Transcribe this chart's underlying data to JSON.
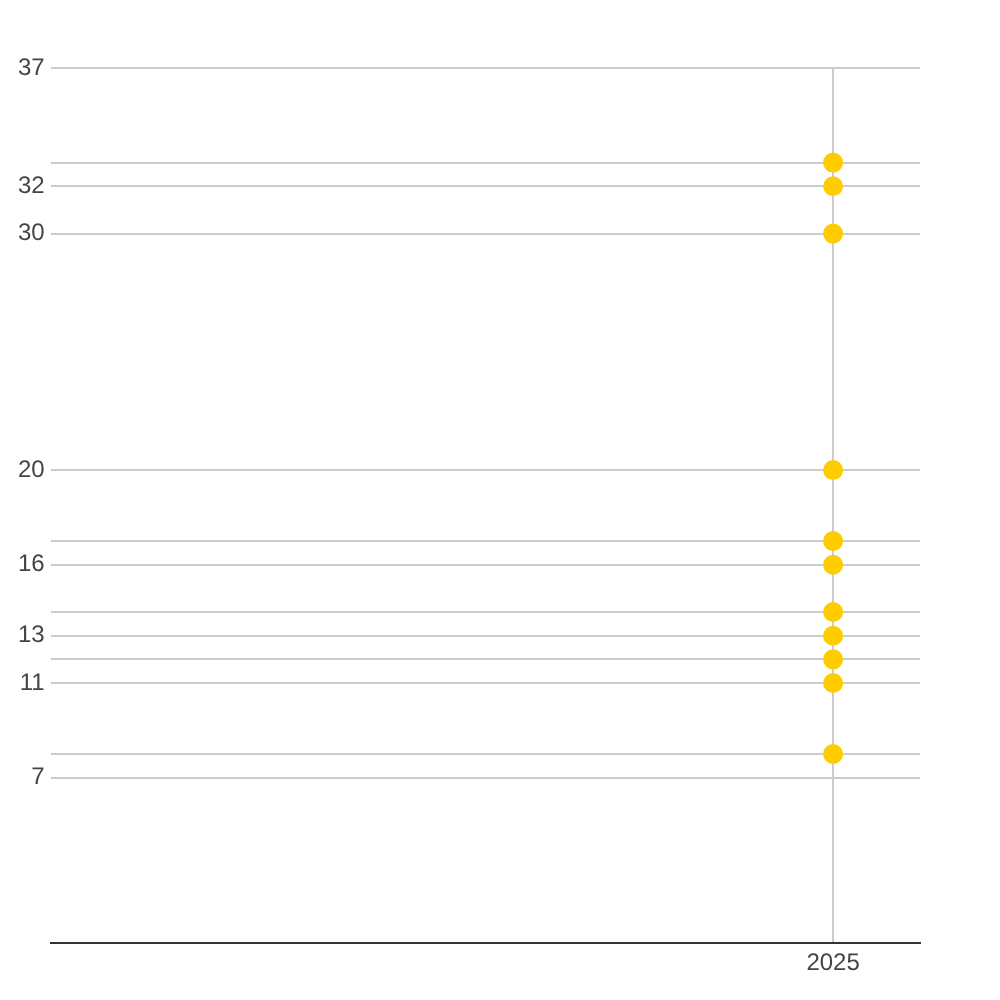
{
  "chart_data": {
    "type": "scatter",
    "categories": [
      null,
      null,
      null,
      null,
      null,
      null,
      null,
      null,
      null,
      "2025",
      null
    ],
    "series": [
      {
        "color": "#ffcc00",
        "values": [
          null,
          null,
          null,
          null,
          null,
          null,
          null,
          null,
          null,
          33,
          null
        ]
      },
      {
        "color": "#ffcc00",
        "values": [
          null,
          null,
          null,
          null,
          null,
          null,
          null,
          null,
          null,
          32,
          null
        ]
      },
      {
        "color": "#ffcc00",
        "values": [
          null,
          null,
          null,
          null,
          null,
          null,
          null,
          null,
          null,
          30,
          null
        ]
      },
      {
        "color": "#ffcc00",
        "values": [
          null,
          null,
          null,
          null,
          null,
          null,
          null,
          null,
          null,
          20,
          null
        ]
      },
      {
        "color": "#ffcc00",
        "values": [
          null,
          null,
          null,
          null,
          null,
          null,
          null,
          null,
          null,
          17,
          null
        ]
      },
      {
        "color": "#ffcc00",
        "values": [
          null,
          null,
          null,
          null,
          null,
          null,
          null,
          null,
          null,
          16,
          null
        ]
      },
      {
        "color": "#ffcc00",
        "values": [
          null,
          null,
          null,
          null,
          null,
          null,
          null,
          null,
          null,
          14,
          null
        ]
      },
      {
        "color": "#ffcc00",
        "values": [
          null,
          null,
          null,
          null,
          null,
          null,
          null,
          null,
          null,
          13,
          null
        ]
      },
      {
        "color": "#ffcc00",
        "values": [
          null,
          null,
          null,
          null,
          null,
          null,
          null,
          null,
          null,
          12,
          null
        ]
      },
      {
        "color": "#ffcc00",
        "values": [
          null,
          null,
          null,
          null,
          null,
          null,
          null,
          null,
          null,
          11,
          null
        ]
      },
      {
        "color": "#ffcc00",
        "values": [
          null,
          null,
          null,
          null,
          null,
          null,
          null,
          null,
          null,
          8,
          null
        ]
      }
    ],
    "ylim": [
      0,
      37
    ],
    "yticks": [
      7,
      {
        "value": 8,
        "label": null
      },
      11,
      {
        "value": 12,
        "label": null
      },
      13,
      {
        "value": 14,
        "label": null
      },
      16,
      {
        "value": 17,
        "label": null
      },
      20,
      30,
      32,
      {
        "value": 33,
        "label": null
      },
      37
    ],
    "grid": true,
    "legend": false,
    "marker": "circle"
  }
}
